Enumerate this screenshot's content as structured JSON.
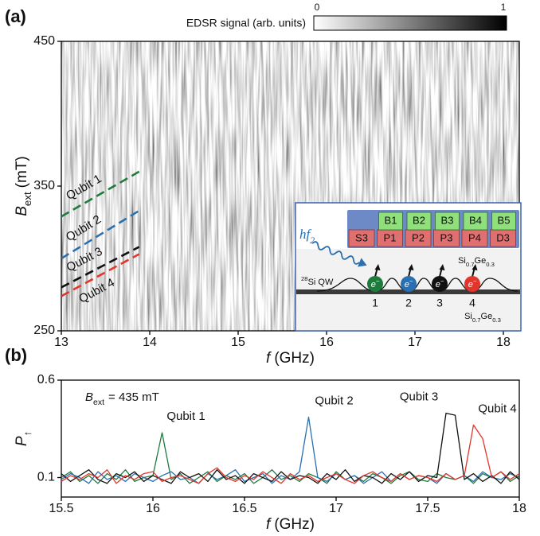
{
  "chart_data": [
    {
      "type": "line",
      "panel_label": "(a)",
      "x_label": {
        "symbol": "f",
        "unit": "(GHz)"
      },
      "y_label": {
        "symbol": "B",
        "subscript": "ext",
        "unit": "(mT)"
      },
      "xlim": [
        13,
        18.18
      ],
      "xticks": [
        13,
        14,
        15,
        16,
        17,
        18
      ],
      "ylim": [
        250,
        450
      ],
      "yticks": [
        250,
        350,
        450
      ],
      "line_style": "dashed",
      "x": [
        13,
        13.88
      ],
      "series": [
        {
          "name": "Qubit 1",
          "color": "#1e7b3c",
          "values": [
            329,
            360
          ]
        },
        {
          "name": "Qubit 2",
          "color": "#2a6fb0",
          "values": [
            300,
            333
          ]
        },
        {
          "name": "Qubit 3",
          "color": "#111111",
          "values": [
            280,
            308
          ]
        },
        {
          "name": "Qubit 4",
          "color": "#e2352b",
          "values": [
            274,
            303
          ]
        }
      ],
      "colorbar": {
        "label": "EDSR signal (arb. units)",
        "lim": [
          0,
          1
        ],
        "ticks": [
          0,
          1
        ]
      }
    },
    {
      "type": "line",
      "panel_label": "(b)",
      "x_label": {
        "symbol": "f",
        "unit": "(GHz)"
      },
      "y_label": {
        "symbol": "P",
        "subscript": "↑"
      },
      "annotation": [
        "B",
        "ext",
        "= 435 mT"
      ],
      "xlim": [
        15.5,
        18
      ],
      "xticks": [
        15.5,
        16,
        16.5,
        17,
        17.5,
        18
      ],
      "ylim": [
        0,
        0.6
      ],
      "yticks": [
        0.1,
        0.6
      ],
      "x": [
        15.5,
        15.55,
        15.6,
        15.65,
        15.7,
        15.75,
        15.8,
        15.85,
        15.9,
        15.95,
        16,
        16.05,
        16.1,
        16.15,
        16.2,
        16.25,
        16.3,
        16.35,
        16.4,
        16.45,
        16.5,
        16.55,
        16.6,
        16.65,
        16.7,
        16.75,
        16.8,
        16.85,
        16.9,
        16.95,
        17,
        17.05,
        17.1,
        17.15,
        17.2,
        17.25,
        17.3,
        17.35,
        17.4,
        17.45,
        17.5,
        17.55,
        17.6,
        17.65,
        17.7,
        17.75,
        17.8,
        17.85,
        17.9,
        17.95,
        18
      ],
      "series": [
        {
          "name": "Qubit 1",
          "color": "#1e7b3c",
          "values": [
            0.1,
            0.13,
            0.08,
            0.11,
            0.07,
            0.12,
            0.09,
            0.14,
            0.08,
            0.1,
            0.11,
            0.33,
            0.09,
            0.12,
            0.07,
            0.1,
            0.13,
            0.08,
            0.11,
            0.09,
            0.12,
            0.07,
            0.1,
            0.14,
            0.09,
            0.11,
            0.08,
            0.12,
            0.1,
            0.07,
            0.13,
            0.09,
            0.11,
            0.08,
            0.12,
            0.1,
            0.07,
            0.11,
            0.13,
            0.09,
            0.08,
            0.12,
            0.1,
            0.09,
            0.11,
            0.07,
            0.12,
            0.1,
            0.13,
            0.08,
            0.11
          ]
        },
        {
          "name": "Qubit 2",
          "color": "#2a6fb0",
          "values": [
            0.09,
            0.12,
            0.1,
            0.07,
            0.13,
            0.09,
            0.11,
            0.08,
            0.12,
            0.1,
            0.08,
            0.11,
            0.13,
            0.09,
            0.1,
            0.07,
            0.12,
            0.09,
            0.11,
            0.14,
            0.08,
            0.1,
            0.12,
            0.07,
            0.11,
            0.09,
            0.13,
            0.41,
            0.1,
            0.08,
            0.12,
            0.09,
            0.11,
            0.07,
            0.1,
            0.13,
            0.08,
            0.12,
            0.09,
            0.11,
            0.1,
            0.07,
            0.12,
            0.09,
            0.11,
            0.08,
            0.13,
            0.1,
            0.09,
            0.12,
            0.1
          ]
        },
        {
          "name": "Qubit 3",
          "color": "#111111",
          "values": [
            0.12,
            0.08,
            0.11,
            0.14,
            0.09,
            0.07,
            0.12,
            0.1,
            0.13,
            0.08,
            0.11,
            0.09,
            0.07,
            0.13,
            0.1,
            0.12,
            0.08,
            0.14,
            0.09,
            0.11,
            0.07,
            0.12,
            0.1,
            0.08,
            0.13,
            0.09,
            0.11,
            0.1,
            0.07,
            0.12,
            0.09,
            0.14,
            0.08,
            0.11,
            0.1,
            0.07,
            0.12,
            0.09,
            0.13,
            0.08,
            0.11,
            0.1,
            0.43,
            0.42,
            0.09,
            0.12,
            0.08,
            0.11,
            0.07,
            0.13,
            0.09
          ]
        },
        {
          "name": "Qubit 4",
          "color": "#e2352b",
          "values": [
            0.08,
            0.11,
            0.09,
            0.12,
            0.1,
            0.14,
            0.07,
            0.11,
            0.09,
            0.12,
            0.13,
            0.08,
            0.1,
            0.11,
            0.09,
            0.07,
            0.12,
            0.15,
            0.1,
            0.08,
            0.11,
            0.09,
            0.13,
            0.1,
            0.07,
            0.12,
            0.09,
            0.11,
            0.08,
            0.1,
            0.12,
            0.09,
            0.07,
            0.11,
            0.13,
            0.1,
            0.08,
            0.12,
            0.09,
            0.11,
            0.1,
            0.08,
            0.12,
            0.09,
            0.11,
            0.37,
            0.3,
            0.1,
            0.13,
            0.09,
            0.12
          ]
        }
      ]
    }
  ],
  "inset": {
    "gates_top": [
      "B1",
      "B2",
      "B3",
      "B4",
      "B5"
    ],
    "gates_bottom": [
      "S3",
      "P1",
      "P2",
      "P3",
      "P4",
      "D3"
    ],
    "photon": [
      "hf",
      "2"
    ],
    "barrier_label": [
      "Si",
      "0.7",
      "Ge",
      "0.3"
    ],
    "well_label": [
      "28",
      "Si QW"
    ],
    "electron_symbol": [
      "e",
      "−"
    ],
    "electron_numbers": [
      "1",
      "2",
      "3",
      "4"
    ]
  }
}
